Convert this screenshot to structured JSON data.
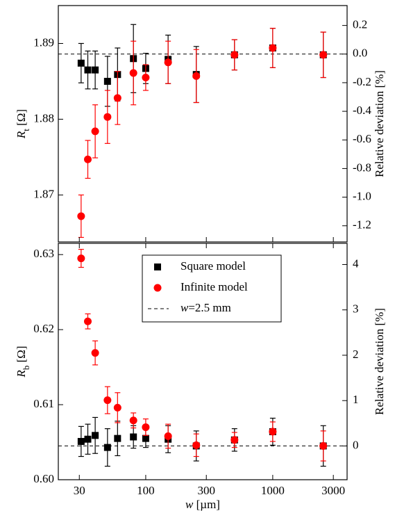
{
  "chart_data": [
    {
      "type": "scatter",
      "log_x": true,
      "x": [
        31,
        35,
        40,
        50,
        60,
        80,
        100,
        150,
        250,
        500,
        1000,
        2500
      ],
      "xlim": [
        20.5,
        3850
      ],
      "ylim": [
        1.8638,
        1.895
      ],
      "yticks": [
        1.87,
        1.88,
        1.89
      ],
      "y2lim": [
        -1.313,
        0.339
      ],
      "y2ticks": [
        {
          "value": -1.2,
          "label": "-1.2"
        },
        {
          "value": -1.0,
          "label": "-1.0"
        },
        -0.8,
        -0.6,
        -0.4,
        -0.2,
        {
          "value": 0,
          "label": "0.0"
        },
        0.2
      ],
      "y_label": [
        "R",
        "t",
        " [Ω]"
      ],
      "y2_label": "Relative deviation [%]",
      "reference": {
        "value": 1.8886,
        "style": "dashed",
        "color": "#000000"
      },
      "series": [
        {
          "marker": "square",
          "color": "#000000",
          "values": [
            1.8874,
            1.8865,
            1.8865,
            1.885,
            1.8859,
            1.888,
            1.8867,
            1.8879,
            1.8859,
            1.8885,
            1.8894,
            1.8885
          ],
          "errors": [
            0.0026,
            0.0025,
            0.0025,
            0.0033,
            0.0035,
            0.0045,
            0.002,
            0.0032,
            0.0037,
            0.002,
            0.0026,
            0.003
          ]
        },
        {
          "marker": "circle",
          "color": "#ff0000",
          "values": [
            1.8672,
            1.8747,
            1.8784,
            1.8803,
            1.8828,
            1.8861,
            1.8855,
            1.8875,
            1.8857,
            1.8885,
            1.8894,
            1.8885
          ],
          "errors": [
            0.0028,
            0.0025,
            0.0035,
            0.0035,
            0.0035,
            0.0042,
            0.0017,
            0.0028,
            0.0035,
            0.002,
            0.0026,
            0.003
          ]
        }
      ]
    },
    {
      "type": "scatter",
      "log_x": true,
      "x": [
        31,
        35,
        40,
        50,
        60,
        80,
        100,
        150,
        250,
        500,
        1000,
        2500
      ],
      "xlim": [
        20.5,
        3850
      ],
      "xticks": [
        30,
        100,
        300,
        1000,
        3000
      ],
      "x_label": [
        "w",
        " [µm]"
      ],
      "ylim": [
        0.6,
        0.6315
      ],
      "yticks": [
        {
          "value": 0.6,
          "label": "0.60"
        },
        0.61,
        0.62,
        0.63
      ],
      "y2lim": [
        -0.744,
        4.467
      ],
      "y2ticks": [
        0,
        1,
        2,
        3,
        4
      ],
      "y_label": [
        "R",
        "b",
        " [Ω]"
      ],
      "y2_label": "Relative deviation [%]",
      "reference": {
        "value": 0.6045,
        "style": "dashed",
        "color": "#000000",
        "label": [
          "w",
          "=2.5 mm"
        ]
      },
      "legend": "top-center",
      "series": [
        {
          "name": "Square model",
          "marker": "square",
          "color": "#000000",
          "values": [
            0.6051,
            0.6054,
            0.6059,
            0.6043,
            0.6055,
            0.6057,
            0.6055,
            0.6054,
            0.6045,
            0.6053,
            0.6064,
            0.6045
          ],
          "errors": [
            0.002,
            0.002,
            0.0024,
            0.0025,
            0.0023,
            0.0015,
            0.0012,
            0.0018,
            0.002,
            0.0015,
            0.0018,
            0.0027
          ]
        },
        {
          "name": "Infinite model",
          "marker": "circle",
          "color": "#ff0000",
          "values": [
            0.6295,
            0.6211,
            0.6169,
            0.6106,
            0.6096,
            0.6079,
            0.607,
            0.6058,
            0.6046,
            0.6053,
            0.6064,
            0.6045
          ],
          "errors": [
            0.0012,
            0.001,
            0.0016,
            0.0018,
            0.002,
            0.001,
            0.0011,
            0.0016,
            0.0015,
            0.001,
            0.0013,
            0.002
          ]
        }
      ]
    }
  ]
}
